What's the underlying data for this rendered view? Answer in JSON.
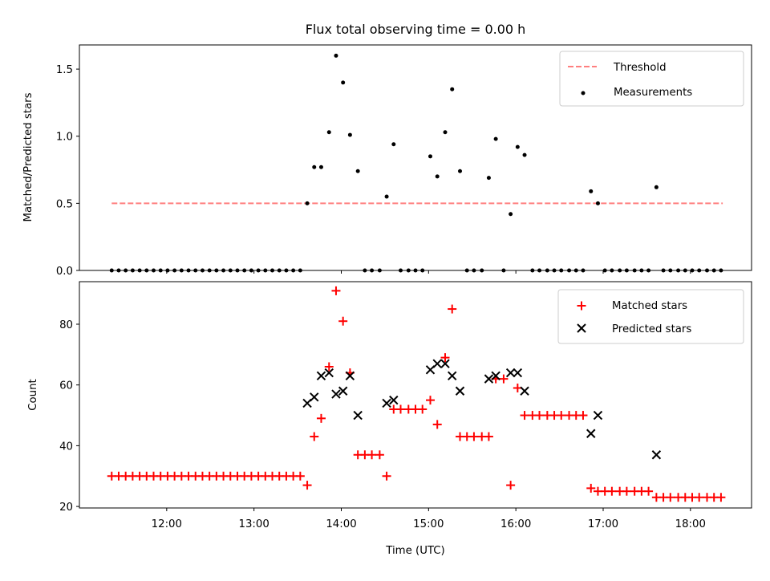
{
  "chart_data": [
    {
      "type": "scatter",
      "title": "Flux total observing time = 0.00 h",
      "xlabel": "",
      "ylabel": "Matched/Predicted stars",
      "xlim_hours": [
        11.0,
        18.7
      ],
      "ylim": [
        0,
        1.68
      ],
      "yticks": [
        {
          "v": 0.0,
          "label": "0.0"
        },
        {
          "v": 0.5,
          "label": "0.5"
        },
        {
          "v": 1.0,
          "label": "1.0"
        },
        {
          "v": 1.5,
          "label": "1.5"
        }
      ],
      "xticks": [
        12,
        13,
        14,
        15,
        16,
        17,
        18
      ],
      "legend": {
        "placement": "top-right",
        "entries": [
          "Threshold",
          "Measurements"
        ]
      },
      "threshold": {
        "name": "Threshold",
        "value": 0.5,
        "x_range": [
          11.37,
          18.37
        ],
        "color": "#ff7f7f",
        "style": "dashed"
      },
      "measurements": {
        "name": "Measurements",
        "color": "#000000",
        "points": [
          [
            11.37,
            0
          ],
          [
            11.45,
            0
          ],
          [
            11.53,
            0
          ],
          [
            11.61,
            0
          ],
          [
            11.69,
            0
          ],
          [
            11.77,
            0
          ],
          [
            11.85,
            0
          ],
          [
            11.93,
            0
          ],
          [
            12.01,
            0
          ],
          [
            12.09,
            0
          ],
          [
            12.17,
            0
          ],
          [
            12.25,
            0
          ],
          [
            12.33,
            0
          ],
          [
            12.41,
            0
          ],
          [
            12.49,
            0
          ],
          [
            12.57,
            0
          ],
          [
            12.65,
            0
          ],
          [
            12.73,
            0
          ],
          [
            12.81,
            0
          ],
          [
            12.89,
            0
          ],
          [
            12.97,
            0
          ],
          [
            13.05,
            0
          ],
          [
            13.13,
            0
          ],
          [
            13.21,
            0
          ],
          [
            13.29,
            0
          ],
          [
            13.37,
            0
          ],
          [
            13.45,
            0
          ],
          [
            13.53,
            0
          ],
          [
            13.61,
            0.5
          ],
          [
            13.69,
            0.77
          ],
          [
            13.77,
            0.77
          ],
          [
            13.86,
            1.03
          ],
          [
            13.94,
            1.6
          ],
          [
            14.02,
            1.4
          ],
          [
            14.1,
            1.01
          ],
          [
            14.19,
            0.74
          ],
          [
            14.27,
            0
          ],
          [
            14.35,
            0
          ],
          [
            14.44,
            0
          ],
          [
            14.52,
            0.55
          ],
          [
            14.6,
            0.94
          ],
          [
            14.68,
            0
          ],
          [
            14.77,
            0
          ],
          [
            14.85,
            0
          ],
          [
            14.93,
            0
          ],
          [
            15.02,
            0.85
          ],
          [
            15.1,
            0.7
          ],
          [
            15.19,
            1.03
          ],
          [
            15.27,
            1.35
          ],
          [
            15.36,
            0.74
          ],
          [
            15.44,
            0
          ],
          [
            15.52,
            0
          ],
          [
            15.61,
            0
          ],
          [
            15.69,
            0.69
          ],
          [
            15.77,
            0.98
          ],
          [
            15.86,
            0
          ],
          [
            15.94,
            0.42
          ],
          [
            16.02,
            0.92
          ],
          [
            16.1,
            0.86
          ],
          [
            16.19,
            0
          ],
          [
            16.27,
            0
          ],
          [
            16.36,
            0
          ],
          [
            16.44,
            0
          ],
          [
            16.52,
            0
          ],
          [
            16.61,
            0
          ],
          [
            16.69,
            0
          ],
          [
            16.77,
            0
          ],
          [
            16.86,
            0.59
          ],
          [
            16.94,
            0.5
          ],
          [
            17.02,
            0
          ],
          [
            17.1,
            0
          ],
          [
            17.19,
            0
          ],
          [
            17.27,
            0
          ],
          [
            17.36,
            0
          ],
          [
            17.44,
            0
          ],
          [
            17.52,
            0
          ],
          [
            17.61,
            0.62
          ],
          [
            17.69,
            0
          ],
          [
            17.77,
            0
          ],
          [
            17.86,
            0
          ],
          [
            17.94,
            0
          ],
          [
            18.02,
            0
          ],
          [
            18.1,
            0
          ],
          [
            18.19,
            0
          ],
          [
            18.27,
            0
          ],
          [
            18.35,
            0
          ]
        ]
      }
    },
    {
      "type": "scatter",
      "title": "",
      "xlabel": "Time (UTC)",
      "ylabel": "Count",
      "xlim_hours": [
        11.0,
        18.7
      ],
      "ylim": [
        19.5,
        94
      ],
      "yticks": [
        {
          "v": 20,
          "label": "20"
        },
        {
          "v": 40,
          "label": "40"
        },
        {
          "v": 60,
          "label": "60"
        },
        {
          "v": 80,
          "label": "80"
        }
      ],
      "xticks": [
        {
          "v": 12,
          "label": "12:00"
        },
        {
          "v": 13,
          "label": "13:00"
        },
        {
          "v": 14,
          "label": "14:00"
        },
        {
          "v": 15,
          "label": "15:00"
        },
        {
          "v": 16,
          "label": "16:00"
        },
        {
          "v": 17,
          "label": "17:00"
        },
        {
          "v": 18,
          "label": "18:00"
        }
      ],
      "legend": {
        "placement": "top-right",
        "entries": [
          "Matched stars",
          "Predicted stars"
        ]
      },
      "series": [
        {
          "name": "Matched stars",
          "marker": "plus",
          "color": "#ff0000",
          "points": [
            [
              11.37,
              30
            ],
            [
              11.45,
              30
            ],
            [
              11.53,
              30
            ],
            [
              11.61,
              30
            ],
            [
              11.69,
              30
            ],
            [
              11.77,
              30
            ],
            [
              11.85,
              30
            ],
            [
              11.93,
              30
            ],
            [
              12.01,
              30
            ],
            [
              12.09,
              30
            ],
            [
              12.17,
              30
            ],
            [
              12.25,
              30
            ],
            [
              12.33,
              30
            ],
            [
              12.41,
              30
            ],
            [
              12.49,
              30
            ],
            [
              12.57,
              30
            ],
            [
              12.65,
              30
            ],
            [
              12.73,
              30
            ],
            [
              12.81,
              30
            ],
            [
              12.89,
              30
            ],
            [
              12.97,
              30
            ],
            [
              13.05,
              30
            ],
            [
              13.13,
              30
            ],
            [
              13.21,
              30
            ],
            [
              13.29,
              30
            ],
            [
              13.37,
              30
            ],
            [
              13.45,
              30
            ],
            [
              13.53,
              30
            ],
            [
              13.61,
              27
            ],
            [
              13.69,
              43
            ],
            [
              13.77,
              49
            ],
            [
              13.86,
              66
            ],
            [
              13.94,
              91
            ],
            [
              14.02,
              81
            ],
            [
              14.1,
              64
            ],
            [
              14.19,
              37
            ],
            [
              14.27,
              37
            ],
            [
              14.35,
              37
            ],
            [
              14.44,
              37
            ],
            [
              14.52,
              30
            ],
            [
              14.6,
              52
            ],
            [
              14.68,
              52
            ],
            [
              14.77,
              52
            ],
            [
              14.85,
              52
            ],
            [
              14.93,
              52
            ],
            [
              15.02,
              55
            ],
            [
              15.1,
              47
            ],
            [
              15.19,
              69
            ],
            [
              15.27,
              85
            ],
            [
              15.36,
              43
            ],
            [
              15.44,
              43
            ],
            [
              15.52,
              43
            ],
            [
              15.61,
              43
            ],
            [
              15.69,
              43
            ],
            [
              15.77,
              62
            ],
            [
              15.86,
              62
            ],
            [
              15.94,
              27
            ],
            [
              16.02,
              59
            ],
            [
              16.1,
              50
            ],
            [
              16.19,
              50
            ],
            [
              16.27,
              50
            ],
            [
              16.36,
              50
            ],
            [
              16.44,
              50
            ],
            [
              16.52,
              50
            ],
            [
              16.61,
              50
            ],
            [
              16.69,
              50
            ],
            [
              16.77,
              50
            ],
            [
              16.86,
              26
            ],
            [
              16.94,
              25
            ],
            [
              17.02,
              25
            ],
            [
              17.1,
              25
            ],
            [
              17.19,
              25
            ],
            [
              17.27,
              25
            ],
            [
              17.36,
              25
            ],
            [
              17.44,
              25
            ],
            [
              17.52,
              25
            ],
            [
              17.61,
              23
            ],
            [
              17.69,
              23
            ],
            [
              17.77,
              23
            ],
            [
              17.86,
              23
            ],
            [
              17.94,
              23
            ],
            [
              18.02,
              23
            ],
            [
              18.1,
              23
            ],
            [
              18.19,
              23
            ],
            [
              18.27,
              23
            ],
            [
              18.35,
              23
            ]
          ]
        },
        {
          "name": "Predicted stars",
          "marker": "x",
          "color": "#000000",
          "points": [
            [
              13.61,
              54
            ],
            [
              13.69,
              56
            ],
            [
              13.77,
              63
            ],
            [
              13.86,
              64
            ],
            [
              13.94,
              57
            ],
            [
              14.02,
              58
            ],
            [
              14.1,
              63
            ],
            [
              14.19,
              50
            ],
            [
              14.52,
              54
            ],
            [
              14.6,
              55
            ],
            [
              15.02,
              65
            ],
            [
              15.1,
              67
            ],
            [
              15.19,
              67
            ],
            [
              15.27,
              63
            ],
            [
              15.36,
              58
            ],
            [
              15.69,
              62
            ],
            [
              15.77,
              63
            ],
            [
              15.94,
              64
            ],
            [
              16.02,
              64
            ],
            [
              16.1,
              58
            ],
            [
              16.86,
              44
            ],
            [
              16.94,
              50
            ],
            [
              17.61,
              37
            ]
          ]
        }
      ]
    }
  ]
}
